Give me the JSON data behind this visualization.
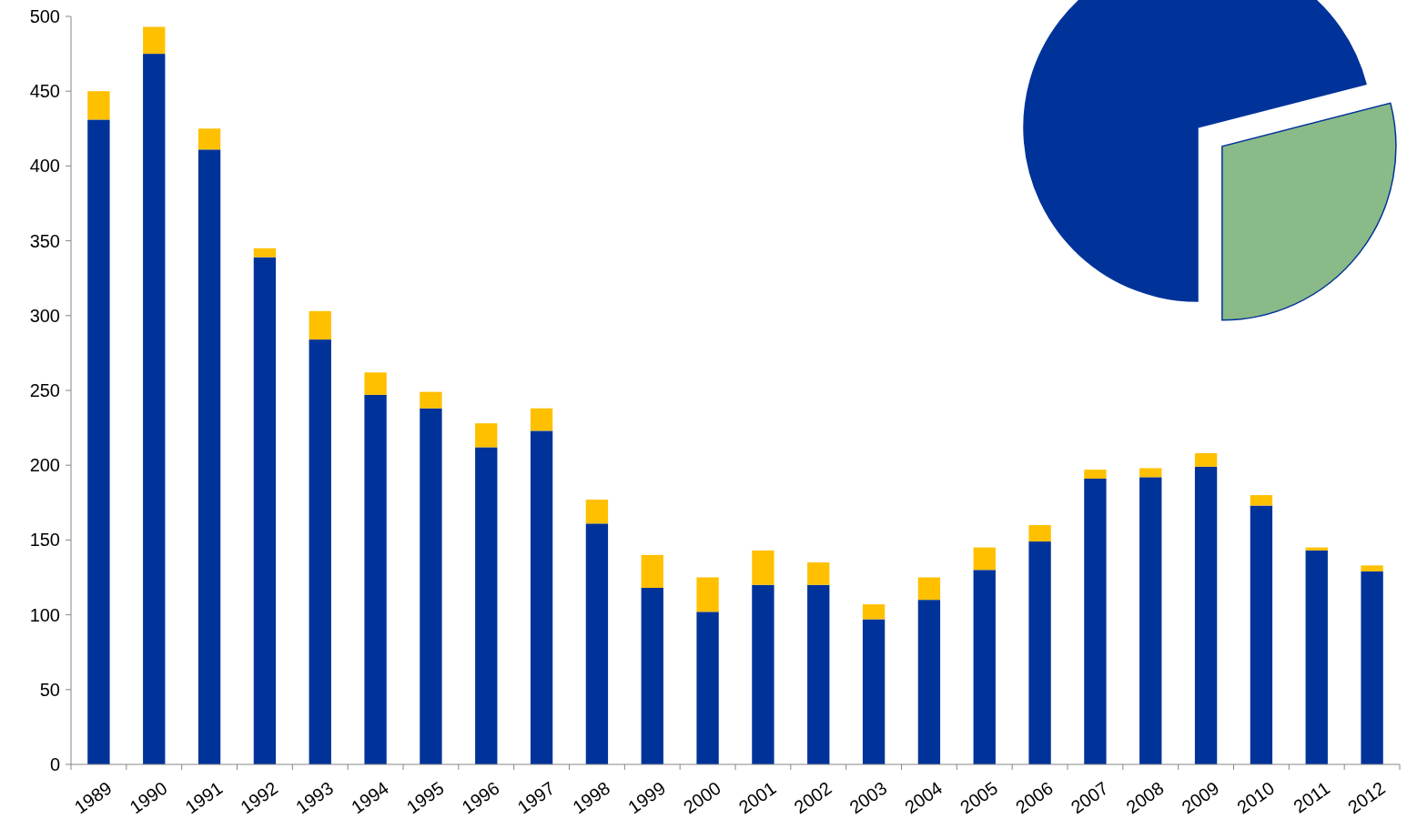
{
  "chart_data": [
    {
      "type": "bar",
      "stacked": true,
      "categories": [
        "1989",
        "1990",
        "1991",
        "1992",
        "1993",
        "1994",
        "1995",
        "1996",
        "1997",
        "1998",
        "1999",
        "2000",
        "2001",
        "2002",
        "2003",
        "2004",
        "2005",
        "2006",
        "2007",
        "2008",
        "2009",
        "2010",
        "2011",
        "2012"
      ],
      "series": [
        {
          "color": "#003399",
          "values": [
            431,
            475,
            411,
            339,
            284,
            247,
            238,
            212,
            223,
            161,
            118,
            102,
            120,
            120,
            97,
            110,
            130,
            149,
            191,
            192,
            199,
            173,
            143,
            129
          ]
        },
        {
          "color": "#ffc000",
          "values": [
            19,
            18,
            14,
            6,
            19,
            15,
            11,
            16,
            15,
            16,
            22,
            23,
            23,
            15,
            10,
            15,
            15,
            11,
            6,
            6,
            9,
            7,
            2,
            4
          ]
        }
      ],
      "ylim": [
        0,
        500
      ],
      "yticks": [
        0,
        50,
        100,
        150,
        200,
        250,
        300,
        350,
        400,
        450,
        500
      ],
      "grid": false
    },
    {
      "type": "pie",
      "categories": [
        null,
        null
      ],
      "values": [
        71,
        29
      ],
      "colors": [
        "#003399",
        "#8aba87"
      ]
    }
  ]
}
